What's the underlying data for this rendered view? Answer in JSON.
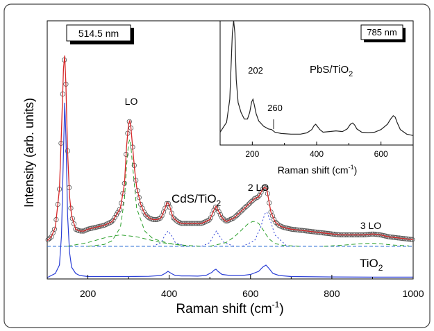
{
  "chart_data": [
    {
      "type": "line",
      "xlabel": "Raman shift (cm",
      "xlabel_sup": "-1",
      "xlabel_end": ")",
      "ylabel": "Intensity (arb. units)",
      "xlim": [
        100,
        1000
      ],
      "xticks": [
        200,
        400,
        600,
        800,
        1000
      ],
      "y_ticks_shown": false,
      "wavelength_label": "514.5 nm",
      "annotations": {
        "lo": "LO",
        "two_lo": "2 LO",
        "three_lo": "3 LO",
        "cds": "CdS/TiO",
        "cds_sub": "2",
        "tio2": "TiO",
        "tio2_sub": "2"
      },
      "series": [
        {
          "role": "CdS/TiO2 measured (open circles)",
          "color": "#555555",
          "x": [
            100,
            110,
            120,
            130,
            135,
            140,
            143,
            146,
            150,
            155,
            160,
            170,
            180,
            190,
            200,
            220,
            240,
            260,
            280,
            290,
            295,
            300,
            303,
            306,
            310,
            315,
            320,
            330,
            340,
            350,
            360,
            370,
            380,
            390,
            395,
            400,
            405,
            410,
            420,
            430,
            440,
            460,
            480,
            500,
            510,
            515,
            520,
            530,
            540,
            560,
            580,
            600,
            610,
            620,
            630,
            635,
            640,
            645,
            650,
            660,
            670,
            680,
            700,
            720,
            740,
            760,
            780,
            800,
            820,
            840,
            860,
            880,
            900,
            920,
            940,
            960,
            980,
            1000
          ],
          "y": [
            0.03,
            0.05,
            0.1,
            0.3,
            0.6,
            0.93,
            1.0,
            0.85,
            0.5,
            0.26,
            0.16,
            0.09,
            0.08,
            0.08,
            0.09,
            0.1,
            0.11,
            0.13,
            0.2,
            0.33,
            0.52,
            0.64,
            0.66,
            0.62,
            0.52,
            0.4,
            0.31,
            0.22,
            0.17,
            0.15,
            0.14,
            0.14,
            0.15,
            0.2,
            0.23,
            0.22,
            0.18,
            0.15,
            0.13,
            0.12,
            0.12,
            0.12,
            0.12,
            0.14,
            0.19,
            0.21,
            0.19,
            0.15,
            0.13,
            0.15,
            0.19,
            0.23,
            0.25,
            0.26,
            0.3,
            0.31,
            0.3,
            0.24,
            0.18,
            0.13,
            0.11,
            0.1,
            0.09,
            0.085,
            0.08,
            0.075,
            0.07,
            0.065,
            0.06,
            0.06,
            0.06,
            0.06,
            0.065,
            0.06,
            0.05,
            0.045,
            0.04,
            0.035
          ]
        },
        {
          "role": "CdS/TiO2 fit (red line)",
          "color": "#d62728",
          "x": [
            100,
            110,
            120,
            130,
            135,
            140,
            143,
            146,
            150,
            155,
            160,
            170,
            180,
            190,
            200,
            220,
            240,
            260,
            280,
            290,
            295,
            300,
            303,
            306,
            310,
            315,
            320,
            330,
            340,
            350,
            360,
            370,
            380,
            390,
            395,
            400,
            405,
            410,
            420,
            430,
            440,
            460,
            480,
            500,
            510,
            515,
            520,
            530,
            540,
            560,
            580,
            600,
            610,
            620,
            630,
            635,
            640,
            645,
            650,
            660,
            670,
            680,
            700,
            720,
            740,
            760,
            780,
            800,
            820,
            840,
            860,
            880,
            900,
            920,
            940,
            960,
            980,
            1000
          ],
          "y": [
            0.03,
            0.05,
            0.1,
            0.3,
            0.6,
            0.93,
            1.0,
            0.85,
            0.5,
            0.26,
            0.16,
            0.09,
            0.08,
            0.08,
            0.09,
            0.1,
            0.11,
            0.13,
            0.2,
            0.33,
            0.52,
            0.64,
            0.66,
            0.62,
            0.52,
            0.4,
            0.31,
            0.22,
            0.17,
            0.15,
            0.14,
            0.14,
            0.15,
            0.2,
            0.23,
            0.22,
            0.18,
            0.15,
            0.13,
            0.12,
            0.12,
            0.12,
            0.12,
            0.14,
            0.19,
            0.21,
            0.19,
            0.15,
            0.13,
            0.15,
            0.19,
            0.23,
            0.25,
            0.26,
            0.3,
            0.31,
            0.3,
            0.24,
            0.18,
            0.13,
            0.11,
            0.1,
            0.09,
            0.085,
            0.08,
            0.075,
            0.07,
            0.065,
            0.06,
            0.06,
            0.06,
            0.06,
            0.065,
            0.06,
            0.05,
            0.045,
            0.04,
            0.035
          ]
        },
        {
          "role": "TiO2 anatase component (blue line)",
          "color": "#2b3fd6",
          "x": [
            100,
            120,
            130,
            135,
            140,
            143,
            146,
            150,
            155,
            160,
            170,
            180,
            200,
            250,
            300,
            350,
            380,
            390,
            397,
            405,
            415,
            430,
            450,
            470,
            490,
            505,
            510,
            515,
            520,
            530,
            550,
            580,
            600,
            620,
            630,
            638,
            645,
            655,
            670,
            700,
            800,
            900,
            1000
          ],
          "y": [
            0.0,
            0.02,
            0.06,
            0.2,
            0.6,
            0.84,
            0.68,
            0.3,
            0.12,
            0.05,
            0.02,
            0.01,
            0.005,
            0.005,
            0.005,
            0.006,
            0.01,
            0.02,
            0.03,
            0.02,
            0.01,
            0.008,
            0.008,
            0.007,
            0.01,
            0.025,
            0.035,
            0.04,
            0.03,
            0.015,
            0.01,
            0.01,
            0.015,
            0.03,
            0.05,
            0.06,
            0.045,
            0.02,
            0.01,
            0.005,
            0.003,
            0.002,
            0.002
          ]
        },
        {
          "role": "CdS LO fit component (green dashed)",
          "color": "#2ca02c",
          "x": [
            200,
            240,
            260,
            280,
            290,
            295,
            300,
            303,
            306,
            310,
            320,
            340,
            360,
            400,
            440,
            480
          ],
          "y": [
            0.0,
            0.01,
            0.03,
            0.1,
            0.25,
            0.42,
            0.54,
            0.56,
            0.52,
            0.42,
            0.2,
            0.08,
            0.04,
            0.015,
            0.005,
            0.0
          ]
        },
        {
          "role": "CdS 2LO fit component (green dashed)",
          "color": "#2ca02c",
          "x": [
            500,
            540,
            560,
            580,
            595,
            605,
            612,
            620,
            630,
            645,
            660,
            680,
            720
          ],
          "y": [
            0.0,
            0.02,
            0.05,
            0.09,
            0.12,
            0.13,
            0.13,
            0.12,
            0.09,
            0.04,
            0.015,
            0.005,
            0.0
          ]
        },
        {
          "role": "CdS 3LO fit component (green dashed)",
          "color": "#2ca02c",
          "x": [
            780,
            820,
            860,
            880,
            900,
            920,
            950,
            990
          ],
          "y": [
            0.0,
            0.005,
            0.012,
            0.015,
            0.016,
            0.013,
            0.007,
            0.002
          ]
        },
        {
          "role": "broad background component (green dashed)",
          "color": "#2ca02c",
          "x": [
            150,
            200,
            250,
            280,
            320,
            380,
            450
          ],
          "y": [
            0.0,
            0.02,
            0.05,
            0.06,
            0.05,
            0.02,
            0.0
          ]
        },
        {
          "role": "anatase fit component 395 (blue dotted)",
          "color": "#2b3fd6",
          "x": [
            360,
            380,
            390,
            397,
            405,
            415,
            440
          ],
          "y": [
            0.0,
            0.02,
            0.06,
            0.08,
            0.06,
            0.02,
            0.0
          ]
        },
        {
          "role": "anatase fit component 515 (blue dotted)",
          "color": "#2b3fd6",
          "x": [
            480,
            500,
            510,
            516,
            522,
            535,
            560
          ],
          "y": [
            0.0,
            0.02,
            0.06,
            0.08,
            0.06,
            0.02,
            0.0
          ]
        },
        {
          "role": "anatase fit component 640 (blue dotted)",
          "color": "#2b3fd6",
          "x": [
            580,
            610,
            625,
            635,
            640,
            648,
            660,
            690
          ],
          "y": [
            0.0,
            0.03,
            0.1,
            0.17,
            0.18,
            0.14,
            0.06,
            0.0
          ]
        }
      ]
    },
    {
      "type": "line",
      "role": "inset",
      "xlabel": "Raman shift (cm",
      "xlabel_sup": "-1",
      "xlabel_end": ")",
      "xlim": [
        100,
        700
      ],
      "xticks": [
        200,
        400,
        600
      ],
      "wavelength_label": "785 nm",
      "annotations": {
        "sample": "PbS/TiO",
        "sample_sub": "2",
        "p202": "202",
        "p260": "260"
      },
      "series": [
        {
          "role": "PbS/TiO2 spectrum (black line)",
          "color": "#222222",
          "x": [
            100,
            120,
            130,
            138,
            142,
            146,
            150,
            156,
            165,
            175,
            185,
            192,
            198,
            202,
            206,
            212,
            220,
            235,
            250,
            260,
            270,
            290,
            320,
            350,
            370,
            385,
            392,
            397,
            402,
            410,
            420,
            440,
            460,
            480,
            495,
            505,
            512,
            518,
            525,
            540,
            560,
            580,
            600,
            620,
            630,
            638,
            644,
            650,
            660,
            680,
            700
          ],
          "y": [
            0.1,
            0.25,
            0.6,
            1.6,
            2.0,
            1.6,
            0.9,
            0.55,
            0.4,
            0.3,
            0.3,
            0.4,
            0.56,
            0.6,
            0.52,
            0.38,
            0.27,
            0.19,
            0.15,
            0.14,
            0.1,
            0.08,
            0.07,
            0.07,
            0.09,
            0.14,
            0.2,
            0.22,
            0.19,
            0.14,
            0.1,
            0.11,
            0.12,
            0.11,
            0.15,
            0.22,
            0.24,
            0.21,
            0.15,
            0.1,
            0.09,
            0.1,
            0.14,
            0.22,
            0.3,
            0.35,
            0.33,
            0.25,
            0.14,
            0.07,
            0.05
          ]
        }
      ]
    }
  ]
}
